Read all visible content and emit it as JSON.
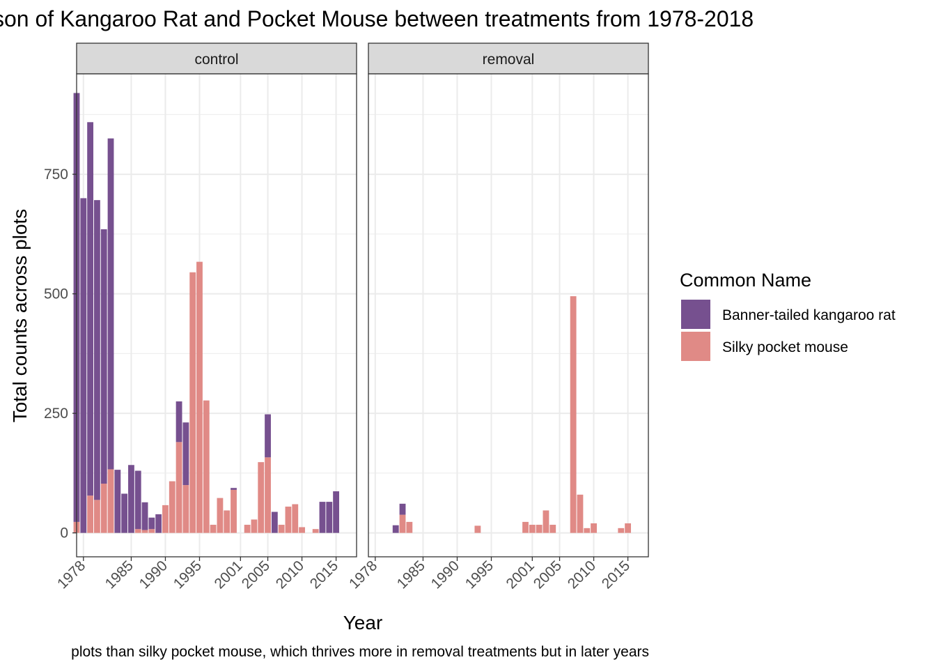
{
  "title": "son of Kangaroo Rat and Pocket Mouse between treatments from 1978-2018",
  "caption": "plots than silky pocket mouse, which thrives more in removal treatments but in later years",
  "colors": {
    "kangaroo_rat": "#76508f",
    "pocket_mouse": "#e08a86",
    "strip_bg": "#d9d9d9",
    "grid": "#ebebeb",
    "panel_border": "#333333"
  },
  "chart_data": {
    "type": "bar",
    "stacked": true,
    "facets": [
      "control",
      "removal"
    ],
    "xlabel": "Year",
    "ylabel": "Total counts across plots",
    "xlim": [
      1977,
      2018
    ],
    "ylim": [
      -50,
      960
    ],
    "x_ticks": [
      "1978",
      "1985",
      "1990",
      "1995",
      "2001",
      "2005",
      "2010",
      "2015"
    ],
    "y_ticks": [
      0,
      250,
      500,
      750
    ],
    "legend": {
      "title": "Common Name",
      "position": "right",
      "entries": [
        "Banner-tailed kangaroo rat",
        "Silky pocket mouse"
      ]
    },
    "grid": true,
    "panels": [
      {
        "facet": "control",
        "years": [
          1977,
          1978,
          1979,
          1980,
          1981,
          1982,
          1983,
          1984,
          1985,
          1986,
          1987,
          1988,
          1989,
          1990,
          1991,
          1992,
          1993,
          1994,
          1995,
          1996,
          1997,
          1998,
          1999,
          2000,
          2001,
          2002,
          2003,
          2004,
          2005,
          2006,
          2007,
          2008,
          2009,
          2010,
          2011,
          2012,
          2013,
          2014,
          2015,
          2016,
          2017
        ],
        "series": [
          {
            "name": "Silky pocket mouse",
            "values": [
              23,
              0,
              78,
              69,
              103,
              133,
              0,
              0,
              0,
              8,
              6,
              8,
              0,
              58,
              108,
              190,
              100,
              545,
              567,
              277,
              17,
              73,
              47,
              90,
              0,
              17,
              28,
              148,
              158,
              0,
              17,
              55,
              60,
              12,
              0,
              8,
              0,
              0,
              0,
              0,
              0
            ]
          },
          {
            "name": "Banner-tailed kangaroo rat",
            "values": [
              897,
              700,
              781,
              627,
              532,
              692,
              132,
              82,
              142,
              122,
              58,
              24,
              39,
              0,
              0,
              85,
              131,
              0,
              0,
              0,
              0,
              0,
              0,
              4,
              0,
              0,
              0,
              0,
              90,
              44,
              0,
              0,
              0,
              0,
              0,
              0,
              65,
              65,
              87,
              0,
              0
            ]
          }
        ]
      },
      {
        "facet": "removal",
        "years": [
          1977,
          1978,
          1979,
          1980,
          1981,
          1982,
          1983,
          1984,
          1985,
          1986,
          1987,
          1988,
          1989,
          1990,
          1991,
          1992,
          1993,
          1994,
          1995,
          1996,
          1997,
          1998,
          1999,
          2000,
          2001,
          2002,
          2003,
          2004,
          2005,
          2006,
          2007,
          2008,
          2009,
          2010,
          2011,
          2012,
          2013,
          2014,
          2015,
          2016,
          2017
        ],
        "series": [
          {
            "name": "Silky pocket mouse",
            "values": [
              0,
              0,
              0,
              0,
              0,
              38,
              23,
              0,
              0,
              0,
              0,
              0,
              0,
              0,
              0,
              0,
              15,
              0,
              0,
              0,
              0,
              0,
              0,
              23,
              17,
              17,
              47,
              17,
              0,
              0,
              495,
              80,
              10,
              20,
              0,
              0,
              0,
              10,
              20,
              0,
              0
            ]
          },
          {
            "name": "Banner-tailed kangaroo rat",
            "values": [
              0,
              0,
              0,
              0,
              16,
              23,
              0,
              0,
              0,
              0,
              0,
              0,
              0,
              0,
              0,
              0,
              0,
              0,
              0,
              0,
              0,
              0,
              0,
              0,
              0,
              0,
              0,
              0,
              0,
              0,
              0,
              0,
              0,
              0,
              0,
              0,
              0,
              0,
              0,
              0,
              0
            ]
          }
        ]
      }
    ]
  }
}
